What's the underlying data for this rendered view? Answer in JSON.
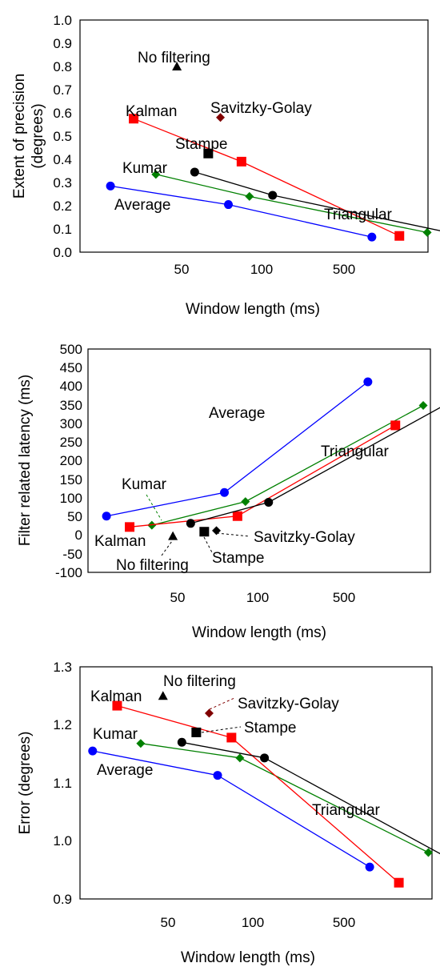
{
  "chart_data": [
    {
      "type": "line",
      "xlabel": "Window length (ms)",
      "ylabel": "Extent of precision (degrees)",
      "ylabel_lines": [
        "Extent of precision",
        "(degrees)"
      ],
      "x_scale": "log",
      "xticks": [
        "50",
        "100",
        "500"
      ],
      "yticks": [
        "0.0",
        "0.1",
        "0.2",
        "0.3",
        "0.4",
        "0.5",
        "0.6",
        "0.7",
        "0.8",
        "0.9",
        "1.0"
      ],
      "ylim": [
        0.0,
        1.0
      ],
      "series": [
        {
          "name": "Average",
          "color": "#0000ff",
          "marker": "circle",
          "x": [
            27,
            75,
            260
          ],
          "y": [
            0.285,
            0.205,
            0.065
          ]
        },
        {
          "name": "Kumar",
          "color": "#008000",
          "marker": "diamond",
          "x": [
            40,
            90,
            420
          ],
          "y": [
            0.335,
            0.24,
            0.085
          ]
        },
        {
          "name": "Kalman",
          "color": "#ff0000",
          "marker": "square",
          "x": [
            33,
            84,
            330
          ],
          "y": [
            0.575,
            0.39,
            0.07
          ]
        },
        {
          "name": "Triangular",
          "color": "#000000",
          "marker": "circle",
          "x": [
            56,
            110,
            580
          ],
          "y": [
            0.345,
            0.245,
            0.07
          ]
        },
        {
          "name": "No filtering",
          "color": "#000000",
          "marker": "triangle",
          "x": [
            48
          ],
          "y": [
            0.8
          ]
        },
        {
          "name": "Savitzky-Golay",
          "color": "#800000",
          "marker": "diamond",
          "x": [
            70
          ],
          "y": [
            0.58
          ]
        },
        {
          "name": "Stampe",
          "color": "#000000",
          "marker": "square",
          "x": [
            63
          ],
          "y": [
            0.425
          ]
        }
      ]
    },
    {
      "type": "line",
      "xlabel": "Window length (ms)",
      "ylabel": "Filter related latency (ms)",
      "x_scale": "log",
      "xticks": [
        "50",
        "100",
        "500"
      ],
      "yticks": [
        "500",
        "450",
        "400",
        "350",
        "300",
        "250",
        "200",
        "150",
        "100",
        "50",
        "0",
        "-50",
        "-100"
      ],
      "ylim": [
        -100,
        500
      ],
      "series": [
        {
          "name": "Average",
          "color": "#0000ff",
          "marker": "circle",
          "x": [
            27,
            75,
            260
          ],
          "y": [
            55,
            120,
            425
          ]
        },
        {
          "name": "Kumar",
          "color": "#008000",
          "marker": "diamond",
          "x": [
            40,
            90,
            420
          ],
          "y": [
            30,
            95,
            360
          ]
        },
        {
          "name": "Kalman",
          "color": "#ff0000",
          "marker": "square",
          "x": [
            33,
            84,
            330
          ],
          "y": [
            25,
            55,
            305
          ]
        },
        {
          "name": "Triangular",
          "color": "#000000",
          "marker": "circle",
          "x": [
            56,
            110,
            580
          ],
          "y": [
            35,
            93,
            385
          ]
        },
        {
          "name": "No filtering",
          "color": "#000000",
          "marker": "triangle",
          "x": [
            48
          ],
          "y": [
            0
          ]
        },
        {
          "name": "Savitzky-Golay",
          "color": "#000000",
          "marker": "diamond",
          "x": [
            70
          ],
          "y": [
            15
          ]
        },
        {
          "name": "Stampe",
          "color": "#000000",
          "marker": "square",
          "x": [
            63
          ],
          "y": [
            12
          ]
        }
      ]
    },
    {
      "type": "line",
      "xlabel": "Window length (ms)",
      "ylabel": "Error (degrees)",
      "x_scale": "log",
      "xticks": [
        "50",
        "100",
        "500"
      ],
      "yticks": [
        "1.3",
        "1.2",
        "1.1",
        "1.0",
        "0.9"
      ],
      "ylim": [
        0.9,
        1.3
      ],
      "series": [
        {
          "name": "Average",
          "color": "#0000ff",
          "marker": "circle",
          "x": [
            27,
            75,
            260
          ],
          "y": [
            1.155,
            1.113,
            0.955
          ]
        },
        {
          "name": "Kumar",
          "color": "#008000",
          "marker": "diamond",
          "x": [
            40,
            90,
            420
          ],
          "y": [
            1.168,
            1.143,
            0.98
          ]
        },
        {
          "name": "Kalman",
          "color": "#ff0000",
          "marker": "square",
          "x": [
            33,
            84,
            330
          ],
          "y": [
            1.233,
            1.178,
            0.928
          ]
        },
        {
          "name": "Triangular",
          "color": "#000000",
          "marker": "circle",
          "x": [
            56,
            110,
            580
          ],
          "y": [
            1.17,
            1.143,
            0.952
          ]
        },
        {
          "name": "No filtering",
          "color": "#000000",
          "marker": "triangle",
          "x": [
            48
          ],
          "y": [
            1.25
          ]
        },
        {
          "name": "Savitzky-Golay",
          "color": "#800000",
          "marker": "diamond",
          "x": [
            70
          ],
          "y": [
            1.22
          ]
        },
        {
          "name": "Stampe",
          "color": "#000000",
          "marker": "square",
          "x": [
            63
          ],
          "y": [
            1.187
          ]
        }
      ]
    }
  ]
}
